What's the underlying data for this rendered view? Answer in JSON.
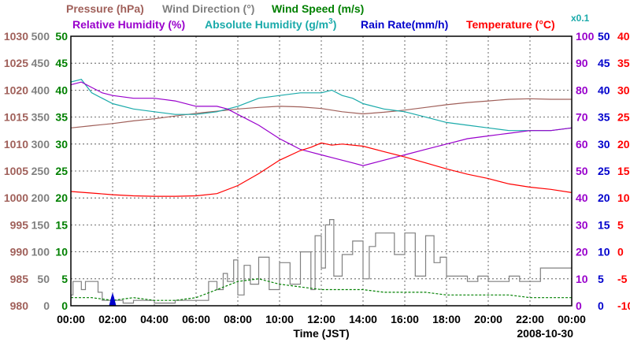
{
  "chart_data": {
    "type": "line",
    "date": "2008-10-30",
    "xlabel": "Time (JST)",
    "x_ticks": [
      "00:00",
      "02:00",
      "04:00",
      "06:00",
      "08:00",
      "10:00",
      "12:00",
      "14:00",
      "16:00",
      "18:00",
      "20:00",
      "22:00",
      "00:00"
    ],
    "x_range_hours": [
      0,
      24
    ],
    "grid": true,
    "legend": {
      "pressure": "Pressure (hPa)",
      "wind_direction": "Wind Direction (°)",
      "wind_speed": "Wind Speed (m/s)",
      "relative_humidity": "Relative Humidity (%)",
      "absolute_humidity": "Absolute Humidity (g/m",
      "absolute_humidity_sup": "3",
      "absolute_humidity_close": ")",
      "rain_rate": "Rain Rate(mm/h)",
      "temperature": "Temperature (°C)",
      "x01": "x0.1"
    },
    "axes": {
      "pressure": {
        "color": "#a0605a",
        "range": [
          980,
          1030
        ],
        "ticks": [
          "1030",
          "1025",
          "1020",
          "1015",
          "1010",
          "1005",
          "1000",
          "995",
          "990",
          "985",
          "980"
        ]
      },
      "wind_direction": {
        "color": "#808080",
        "range": [
          0,
          500
        ],
        "ticks": [
          "500",
          "450",
          "400",
          "350",
          "300",
          "250",
          "200",
          "150",
          "100",
          "50",
          "0"
        ]
      },
      "wind_speed": {
        "color": "#008000",
        "range": [
          0,
          50
        ],
        "ticks": [
          "50",
          "45",
          "40",
          "35",
          "30",
          "25",
          "20",
          "15",
          "10",
          "5",
          "0"
        ]
      },
      "humidity": {
        "color": "#9900cc",
        "range": [
          0,
          100
        ],
        "ticks": [
          "100",
          "90",
          "80",
          "70",
          "60",
          "50",
          "40",
          "30",
          "20",
          "10",
          "0"
        ]
      },
      "rain_rate": {
        "color": "#0000cc",
        "range": [
          0,
          50
        ],
        "ticks": [
          "50",
          "45",
          "40",
          "35",
          "30",
          "25",
          "20",
          "15",
          "10",
          "5",
          "0"
        ]
      },
      "temperature": {
        "color": "#ff0000",
        "range": [
          -10,
          40
        ],
        "ticks": [
          "40",
          "35",
          "30",
          "25",
          "20",
          "15",
          "10",
          "5",
          "0",
          "-5",
          "-10"
        ]
      }
    },
    "series": [
      {
        "name": "Pressure (hPa)",
        "color": "#a0605a",
        "axis": "pressure",
        "x": [
          0,
          1,
          2,
          3,
          4,
          5,
          6,
          7,
          8,
          9,
          10,
          11,
          12,
          13,
          14,
          15,
          16,
          17,
          18,
          19,
          20,
          21,
          22,
          23,
          24
        ],
        "y": [
          1013,
          1013.4,
          1013.8,
          1014.3,
          1014.7,
          1015.2,
          1015.7,
          1016.1,
          1016.5,
          1016.8,
          1017,
          1016.9,
          1016.6,
          1016,
          1015.6,
          1015.9,
          1016.3,
          1016.8,
          1017.3,
          1017.7,
          1018.0,
          1018.3,
          1018.4,
          1018.3,
          1018.3
        ]
      },
      {
        "name": "Absolute Humidity (g/m3)",
        "color": "#1aaaaa",
        "axis": "wind_speed",
        "x": [
          0,
          0.5,
          1,
          1.5,
          2,
          3,
          4,
          5,
          6,
          7,
          8,
          9,
          10,
          11,
          12,
          12.5,
          13,
          13.5,
          14,
          15,
          16,
          17,
          18,
          19,
          20,
          21,
          22,
          23,
          24
        ],
        "y": [
          41.5,
          42,
          39.5,
          38.5,
          37.5,
          36.5,
          36,
          35.5,
          35.5,
          36,
          37,
          38.5,
          39,
          39.5,
          39.5,
          40,
          39,
          38.5,
          37.5,
          36.5,
          36,
          35,
          34,
          33.5,
          33,
          32.5,
          32.5,
          32.5,
          33
        ]
      },
      {
        "name": "Relative Humidity (%)",
        "color": "#9900cc",
        "axis": "humidity",
        "x": [
          0,
          0.5,
          1,
          1.5,
          2,
          3,
          4,
          5,
          6,
          7,
          7.5,
          8,
          9,
          10,
          10.5,
          11,
          11.5,
          12,
          12.5,
          13,
          13.5,
          14,
          15,
          16,
          17,
          18,
          19,
          20,
          21,
          22,
          23,
          24
        ],
        "y": [
          82,
          83,
          81,
          79,
          78,
          77,
          77,
          76,
          74,
          74,
          73,
          71,
          67,
          62,
          60,
          58,
          57,
          56,
          55,
          54,
          53,
          52,
          54,
          56,
          58,
          60,
          62,
          63,
          64,
          65,
          65,
          66
        ]
      },
      {
        "name": "Temperature (°C)",
        "color": "#ff0000",
        "axis": "temperature",
        "x": [
          0,
          1,
          2,
          3,
          4,
          5,
          6,
          7,
          8,
          9,
          10,
          11,
          11.5,
          12,
          12.5,
          13,
          14,
          15,
          16,
          17,
          18,
          19,
          20,
          21,
          22,
          23,
          24
        ],
        "y": [
          11.2,
          10.9,
          10.6,
          10.4,
          10.3,
          10.3,
          10.4,
          10.8,
          12.3,
          14.5,
          17,
          18.8,
          19.4,
          20.2,
          19.8,
          20,
          19.6,
          18.6,
          17.6,
          16.5,
          15.4,
          14.4,
          13.6,
          12.6,
          12.0,
          11.6,
          11
        ]
      },
      {
        "name": "Wind Direction (°)",
        "color": "#808080",
        "axis": "wind_direction",
        "x": [
          0,
          0.1,
          0.3,
          0.5,
          0.7,
          1.2,
          1.3,
          1.5,
          2.5,
          3,
          4,
          5,
          6.5,
          6.6,
          7,
          7.3,
          7.5,
          7.8,
          8,
          8.3,
          8.6,
          9,
          9.5,
          10,
          10.5,
          11,
          11.5,
          11.7,
          12,
          12.2,
          12.4,
          12.6,
          13,
          13.5,
          14,
          14.3,
          14.6,
          15,
          15.5,
          16,
          16.5,
          17,
          17.4,
          17.7,
          18,
          18.5,
          19,
          19.5,
          20,
          20.5,
          21,
          21.5,
          22,
          22.5,
          23,
          23.5,
          24
        ],
        "y": [
          20,
          45,
          45,
          30,
          45,
          45,
          25,
          10,
          5,
          10,
          5,
          10,
          10,
          45,
          30,
          60,
          45,
          85,
          20,
          75,
          40,
          90,
          30,
          80,
          40,
          100,
          30,
          130,
          70,
          150,
          160,
          55,
          95,
          120,
          50,
          110,
          135,
          135,
          95,
          135,
          55,
          130,
          80,
          90,
          55,
          55,
          45,
          55,
          45,
          45,
          55,
          45,
          45,
          70,
          70,
          70,
          70
        ]
      },
      {
        "name": "Wind Speed (m/s)",
        "color": "#008000",
        "axis": "wind_speed",
        "style": "dashed",
        "x": [
          0,
          1,
          2,
          3,
          4,
          5,
          6,
          7,
          8,
          9,
          10,
          11,
          12,
          13,
          14,
          15,
          16,
          17,
          18,
          19,
          20,
          21,
          22,
          23,
          24
        ],
        "y": [
          1.5,
          1.5,
          1,
          1.5,
          1,
          1,
          1.5,
          3,
          4.5,
          5,
          4,
          3.5,
          3,
          3,
          3,
          2.5,
          2.5,
          2.5,
          2,
          2,
          2,
          2,
          1.5,
          1.5,
          1.5
        ]
      },
      {
        "name": "Rain Rate(mm/h)",
        "color": "#0000cc",
        "axis": "rain_rate",
        "x": [
          1.85,
          1.95,
          2.0,
          2.05,
          2.15
        ],
        "y": [
          0,
          1.6,
          2.2,
          1.6,
          0
        ]
      }
    ]
  }
}
